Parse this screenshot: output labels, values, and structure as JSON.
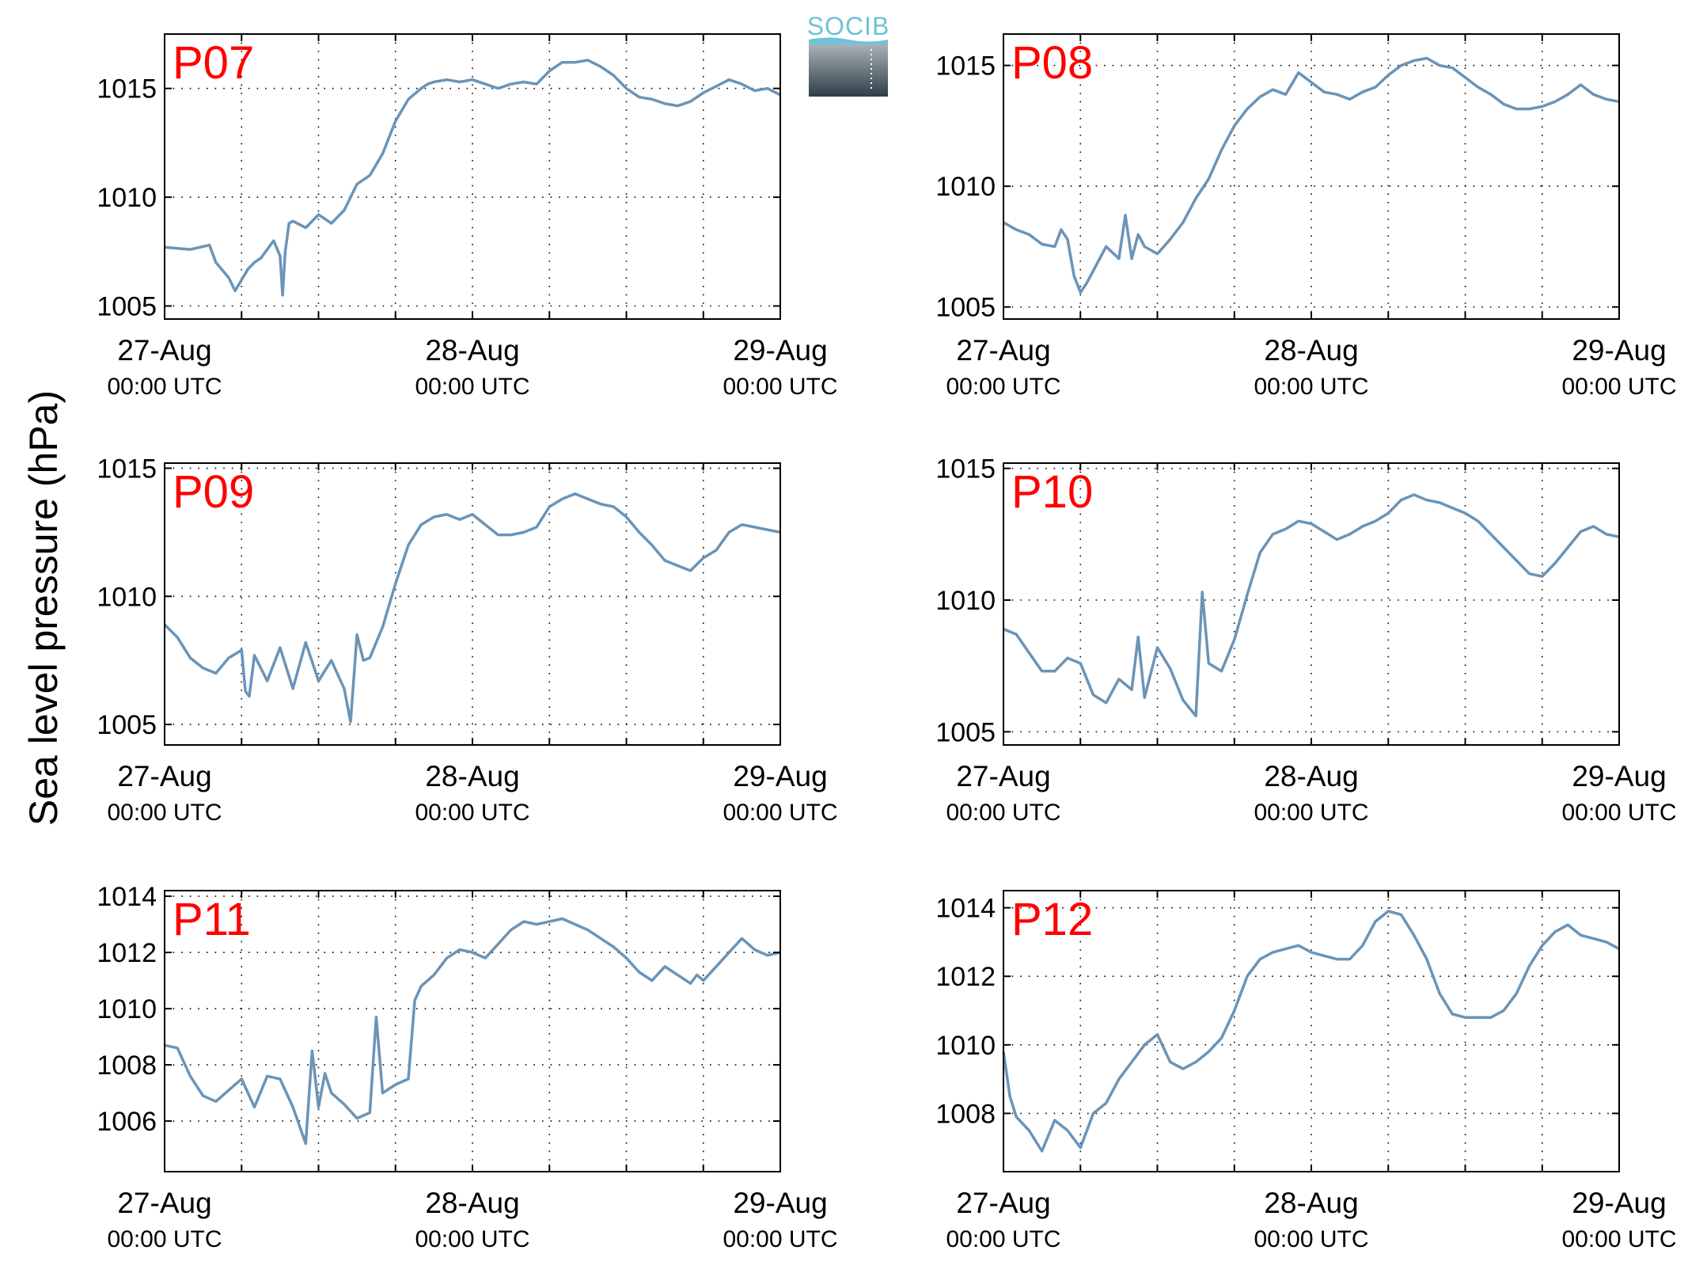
{
  "figure": {
    "ylabel": "Sea level pressure (hPa)",
    "logo_text": "SOCIB",
    "line_color": "#6a94b8",
    "title_color": "#ff0000",
    "grid": true
  },
  "chart_data": [
    {
      "type": "line",
      "title": "P07",
      "x_ticks": [
        {
          "date": "27-Aug",
          "time": "00:00 UTC",
          "hour": 0
        },
        {
          "date": "28-Aug",
          "time": "00:00 UTC",
          "hour": 24
        },
        {
          "date": "29-Aug",
          "time": "00:00 UTC",
          "hour": 48
        }
      ],
      "xlim": [
        0,
        48
      ],
      "ylim": [
        1004.4,
        1017.5
      ],
      "yticks": [
        1005,
        1010,
        1015
      ],
      "series": [
        {
          "x_hours": [
            0,
            2,
            3.5,
            4,
            5,
            5.5,
            6,
            6.5,
            7,
            7.5,
            8,
            8.5,
            9,
            9.2,
            9.4,
            9.7,
            10,
            11,
            12,
            13,
            14,
            15,
            16,
            17,
            18,
            19,
            20,
            20.5,
            21,
            22,
            23,
            24,
            26,
            27,
            28,
            29,
            30,
            31,
            32,
            33,
            34,
            35,
            36,
            37,
            38,
            39,
            40,
            41,
            42,
            43,
            44,
            45,
            46,
            47,
            48
          ],
          "values": [
            1007.7,
            1007.6,
            1007.8,
            1007,
            1006.3,
            1005.7,
            1006.2,
            1006.7,
            1007,
            1007.2,
            1007.6,
            1008,
            1007.3,
            1005.5,
            1007.5,
            1008.8,
            1008.9,
            1008.6,
            1009.2,
            1008.8,
            1009.4,
            1010.6,
            1011,
            1012,
            1013.5,
            1014.5,
            1015,
            1015.2,
            1015.3,
            1015.4,
            1015.3,
            1015.4,
            1015,
            1015.2,
            1015.3,
            1015.2,
            1015.8,
            1016.2,
            1016.2,
            1016.3,
            1016,
            1015.6,
            1015,
            1014.6,
            1014.5,
            1014.3,
            1014.2,
            1014.4,
            1014.8,
            1015.1,
            1015.4,
            1015.2,
            1014.9,
            1015,
            1014.7
          ]
        }
      ]
    },
    {
      "type": "line",
      "title": "P08",
      "x_ticks": [
        {
          "date": "27-Aug",
          "time": "00:00 UTC",
          "hour": 0
        },
        {
          "date": "28-Aug",
          "time": "00:00 UTC",
          "hour": 24
        },
        {
          "date": "29-Aug",
          "time": "00:00 UTC",
          "hour": 48
        }
      ],
      "xlim": [
        0,
        48
      ],
      "ylim": [
        1004.5,
        1016.3
      ],
      "yticks": [
        1005,
        1010,
        1015
      ],
      "series": [
        {
          "x_hours": [
            0,
            1,
            2,
            3,
            4,
            4.5,
            5,
            5.5,
            6,
            6.5,
            7,
            8,
            9,
            9.5,
            10,
            10.5,
            11,
            12,
            13,
            14,
            15,
            16,
            17,
            18,
            19,
            20,
            21,
            22,
            23,
            24,
            25,
            26,
            27,
            28,
            29,
            30,
            31,
            32,
            33,
            34,
            35,
            36,
            37,
            38,
            39,
            40,
            41,
            42,
            43,
            44,
            45,
            46,
            47,
            48
          ],
          "values": [
            1008.5,
            1008.2,
            1008,
            1007.6,
            1007.5,
            1008.2,
            1007.8,
            1006.3,
            1005.6,
            1006,
            1006.5,
            1007.5,
            1007,
            1008.8,
            1007,
            1008,
            1007.5,
            1007.2,
            1007.8,
            1008.5,
            1009.5,
            1010.3,
            1011.5,
            1012.5,
            1013.2,
            1013.7,
            1014,
            1013.8,
            1014.7,
            1014.3,
            1013.9,
            1013.8,
            1013.6,
            1013.9,
            1014.1,
            1014.6,
            1015,
            1015.2,
            1015.3,
            1015,
            1014.9,
            1014.5,
            1014.1,
            1013.8,
            1013.4,
            1013.2,
            1013.2,
            1013.3,
            1013.5,
            1013.8,
            1014.2,
            1013.8,
            1013.6,
            1013.5
          ]
        }
      ]
    },
    {
      "type": "line",
      "title": "P09",
      "x_ticks": [
        {
          "date": "27-Aug",
          "time": "00:00 UTC",
          "hour": 0
        },
        {
          "date": "28-Aug",
          "time": "00:00 UTC",
          "hour": 24
        },
        {
          "date": "29-Aug",
          "time": "00:00 UTC",
          "hour": 48
        }
      ],
      "xlim": [
        0,
        48
      ],
      "ylim": [
        1004.2,
        1015.2
      ],
      "yticks": [
        1005,
        1010,
        1015
      ],
      "series": [
        {
          "x_hours": [
            0,
            1,
            2,
            3,
            4,
            5,
            6,
            6.3,
            6.6,
            7,
            8,
            9,
            10,
            11,
            12,
            13,
            14,
            14.5,
            15,
            15.5,
            16,
            17,
            18,
            19,
            20,
            21,
            22,
            23,
            24,
            25,
            26,
            27,
            28,
            29,
            30,
            31,
            32,
            33,
            34,
            35,
            36,
            37,
            38,
            39,
            40,
            41,
            42,
            43,
            44,
            45,
            46,
            47,
            48
          ],
          "values": [
            1008.9,
            1008.4,
            1007.6,
            1007.2,
            1007,
            1007.6,
            1007.9,
            1006.3,
            1006.1,
            1007.7,
            1006.7,
            1008,
            1006.4,
            1008.2,
            1006.7,
            1007.5,
            1006.4,
            1005.1,
            1008.5,
            1007.5,
            1007.6,
            1008.8,
            1010.5,
            1012,
            1012.8,
            1013.1,
            1013.2,
            1013,
            1013.2,
            1012.8,
            1012.4,
            1012.4,
            1012.5,
            1012.7,
            1013.5,
            1013.8,
            1014,
            1013.8,
            1013.6,
            1013.5,
            1013.1,
            1012.5,
            1012,
            1011.4,
            1011.2,
            1011,
            1011.5,
            1011.8,
            1012.5,
            1012.8,
            1012.7,
            1012.6,
            1012.5
          ]
        }
      ]
    },
    {
      "type": "line",
      "title": "P10",
      "x_ticks": [
        {
          "date": "27-Aug",
          "time": "00:00 UTC",
          "hour": 0
        },
        {
          "date": "28-Aug",
          "time": "00:00 UTC",
          "hour": 24
        },
        {
          "date": "29-Aug",
          "time": "00:00 UTC",
          "hour": 48
        }
      ],
      "xlim": [
        0,
        48
      ],
      "ylim": [
        1004.5,
        1015.2
      ],
      "yticks": [
        1005,
        1010,
        1015
      ],
      "series": [
        {
          "x_hours": [
            0,
            1,
            2,
            3,
            4,
            5,
            6,
            7,
            8,
            9,
            10,
            10.5,
            11,
            12,
            13,
            14,
            15,
            15.5,
            16,
            17,
            18,
            19,
            20,
            21,
            22,
            23,
            24,
            25,
            26,
            27,
            28,
            29,
            30,
            31,
            32,
            33,
            34,
            35,
            36,
            37,
            38,
            39,
            40,
            41,
            42,
            43,
            44,
            45,
            46,
            47,
            48
          ],
          "values": [
            1008.9,
            1008.7,
            1008,
            1007.3,
            1007.3,
            1007.8,
            1007.6,
            1006.4,
            1006.1,
            1007,
            1006.6,
            1008.6,
            1006.3,
            1008.2,
            1007.4,
            1006.2,
            1005.6,
            1010.3,
            1007.6,
            1007.3,
            1008.5,
            1010.2,
            1011.8,
            1012.5,
            1012.7,
            1013,
            1012.9,
            1012.6,
            1012.3,
            1012.5,
            1012.8,
            1013,
            1013.3,
            1013.8,
            1014,
            1013.8,
            1013.7,
            1013.5,
            1013.3,
            1013,
            1012.5,
            1012,
            1011.5,
            1011,
            1010.9,
            1011.4,
            1012,
            1012.6,
            1012.8,
            1012.5,
            1012.4
          ]
        }
      ]
    },
    {
      "type": "line",
      "title": "P11",
      "x_ticks": [
        {
          "date": "27-Aug",
          "time": "00:00 UTC",
          "hour": 0
        },
        {
          "date": "28-Aug",
          "time": "00:00 UTC",
          "hour": 24
        },
        {
          "date": "29-Aug",
          "time": "00:00 UTC",
          "hour": 48
        }
      ],
      "xlim": [
        0,
        48
      ],
      "ylim": [
        1004.2,
        1014.2
      ],
      "yticks": [
        1006,
        1008,
        1010,
        1012,
        1014
      ],
      "series": [
        {
          "x_hours": [
            0,
            1,
            2,
            3,
            4,
            5,
            6,
            7,
            8,
            9,
            10,
            11,
            11.5,
            12,
            12.5,
            13,
            14,
            15,
            16,
            16.5,
            17,
            18,
            19,
            19.5,
            20,
            21,
            22,
            23,
            24,
            25,
            26,
            27,
            28,
            29,
            30,
            31,
            32,
            33,
            34,
            35,
            36,
            37,
            38,
            39,
            40,
            41,
            41.5,
            42,
            43,
            44,
            45,
            46,
            47,
            48
          ],
          "values": [
            1008.7,
            1008.6,
            1007.6,
            1006.9,
            1006.7,
            1007.1,
            1007.5,
            1006.5,
            1007.6,
            1007.5,
            1006.5,
            1005.2,
            1008.5,
            1006.5,
            1007.7,
            1007,
            1006.6,
            1006.1,
            1006.3,
            1009.7,
            1007,
            1007.3,
            1007.5,
            1010.3,
            1010.8,
            1011.2,
            1011.8,
            1012.1,
            1012,
            1011.8,
            1012.3,
            1012.8,
            1013.1,
            1013,
            1013.1,
            1013.2,
            1013,
            1012.8,
            1012.5,
            1012.2,
            1011.8,
            1011.3,
            1011,
            1011.5,
            1011.2,
            1010.9,
            1011.2,
            1011,
            1011.5,
            1012,
            1012.5,
            1012.1,
            1011.9,
            1012
          ]
        }
      ]
    },
    {
      "type": "line",
      "title": "P12",
      "x_ticks": [
        {
          "date": "27-Aug",
          "time": "00:00 UTC",
          "hour": 0
        },
        {
          "date": "28-Aug",
          "time": "00:00 UTC",
          "hour": 24
        },
        {
          "date": "29-Aug",
          "time": "00:00 UTC",
          "hour": 48
        }
      ],
      "xlim": [
        0,
        48
      ],
      "ylim": [
        1006.3,
        1014.5
      ],
      "yticks": [
        1008,
        1010,
        1012,
        1014
      ],
      "series": [
        {
          "x_hours": [
            0,
            0.5,
            1,
            2,
            3,
            4,
            5,
            6,
            7,
            8,
            9,
            10,
            11,
            12,
            13,
            14,
            15,
            16,
            17,
            18,
            19,
            20,
            21,
            22,
            23,
            24,
            25,
            26,
            27,
            28,
            29,
            30,
            31,
            32,
            33,
            34,
            35,
            36,
            37,
            38,
            39,
            40,
            41,
            42,
            43,
            44,
            45,
            46,
            47,
            48
          ],
          "values": [
            1009.8,
            1008.5,
            1007.9,
            1007.5,
            1006.9,
            1007.8,
            1007.5,
            1007,
            1008,
            1008.3,
            1009,
            1009.5,
            1010,
            1010.3,
            1009.5,
            1009.3,
            1009.5,
            1009.8,
            1010.2,
            1011,
            1012,
            1012.5,
            1012.7,
            1012.8,
            1012.9,
            1012.7,
            1012.6,
            1012.5,
            1012.5,
            1012.9,
            1013.6,
            1013.9,
            1013.8,
            1013.2,
            1012.5,
            1011.5,
            1010.9,
            1010.8,
            1010.8,
            1010.8,
            1011,
            1011.5,
            1012.3,
            1012.9,
            1013.3,
            1013.5,
            1013.2,
            1013.1,
            1013,
            1012.8
          ]
        }
      ]
    }
  ]
}
